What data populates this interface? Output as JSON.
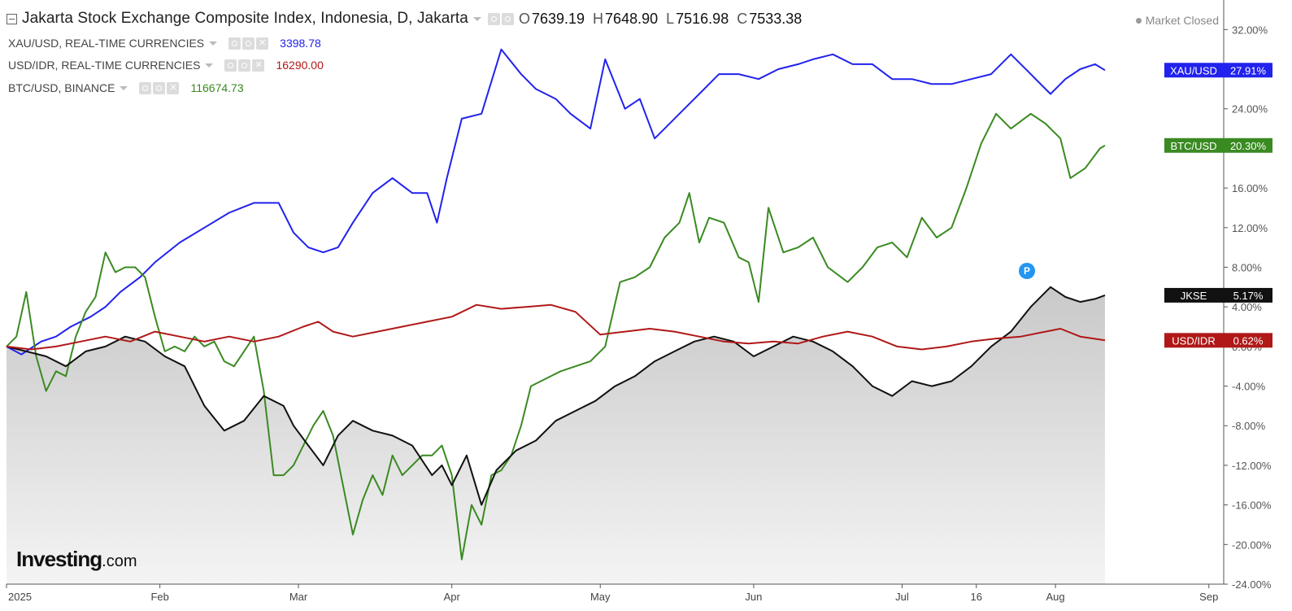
{
  "header": {
    "title": "Jakarta Stock Exchange Composite Index, Indonesia, D, Jakarta",
    "ohlc": [
      {
        "key": "O",
        "value": "7639.19"
      },
      {
        "key": "H",
        "value": "7648.90"
      },
      {
        "key": "L",
        "value": "7516.98"
      },
      {
        "key": "C",
        "value": "7533.38"
      }
    ],
    "market_status": "Market Closed"
  },
  "legend": [
    {
      "label": "XAU/USD, REAL-TIME CURRENCIES",
      "value": "3398.78",
      "color": "#2222ee"
    },
    {
      "label": "USD/IDR, REAL-TIME CURRENCIES",
      "value": "16290.00",
      "color": "#b01818"
    },
    {
      "label": "BTC/USD, BINANCE",
      "value": "116674.73",
      "color": "#3a8a22"
    }
  ],
  "logo": {
    "main": "Investing",
    "suffix": ".com"
  },
  "event_marker": "P",
  "chart_data": {
    "type": "line",
    "y_unit": "%",
    "ylim": [
      -24,
      34
    ],
    "y_ticks": [
      "32.00%",
      "28.00%",
      "24.00%",
      "20.00%",
      "16.00%",
      "12.00%",
      "8.00%",
      "4.00%",
      "0.00%",
      "-4.00%",
      "-8.00%",
      "-12.00%",
      "-16.00%",
      "-20.00%",
      "-24.00%"
    ],
    "y_tick_values": [
      32,
      28,
      24,
      20,
      16,
      12,
      8,
      4,
      0,
      -4,
      -8,
      -12,
      -16,
      -20,
      -24
    ],
    "x_ticks": [
      {
        "label": "2025",
        "day": 0
      },
      {
        "label": "Feb",
        "day": 31
      },
      {
        "label": "Mar",
        "day": 59
      },
      {
        "label": "Apr",
        "day": 90
      },
      {
        "label": "May",
        "day": 120
      },
      {
        "label": "Jun",
        "day": 151
      },
      {
        "label": "Jul",
        "day": 181
      },
      {
        "label": "16",
        "day": 196
      },
      {
        "label": "Aug",
        "day": 212
      },
      {
        "label": "Sep",
        "day": 243
      }
    ],
    "x_range_days": [
      0,
      246
    ],
    "grid": false,
    "series": [
      {
        "name": "XAU/USD",
        "tag": "XAU/USD",
        "last_label": "27.91%",
        "color": "#2222ee",
        "data": [
          [
            0,
            0
          ],
          [
            3,
            -0.8
          ],
          [
            7,
            0.5
          ],
          [
            10,
            1
          ],
          [
            13,
            2
          ],
          [
            17,
            3
          ],
          [
            20,
            4
          ],
          [
            23,
            5.5
          ],
          [
            27,
            7
          ],
          [
            30,
            8.5
          ],
          [
            35,
            10.5
          ],
          [
            40,
            12
          ],
          [
            45,
            13.5
          ],
          [
            50,
            14.5
          ],
          [
            55,
            14.5
          ],
          [
            58,
            11.5
          ],
          [
            61,
            10
          ],
          [
            64,
            9.5
          ],
          [
            67,
            10
          ],
          [
            70,
            12.5
          ],
          [
            74,
            15.5
          ],
          [
            78,
            17
          ],
          [
            82,
            15.5
          ],
          [
            85,
            15.5
          ],
          [
            87,
            12.5
          ],
          [
            89,
            17
          ],
          [
            92,
            23
          ],
          [
            96,
            23.5
          ],
          [
            100,
            30
          ],
          [
            104,
            27.5
          ],
          [
            107,
            26
          ],
          [
            111,
            25
          ],
          [
            114,
            23.5
          ],
          [
            118,
            22
          ],
          [
            121,
            29
          ],
          [
            125,
            24
          ],
          [
            128,
            25
          ],
          [
            131,
            21
          ],
          [
            133,
            22
          ],
          [
            136,
            23.5
          ],
          [
            140,
            25.5
          ],
          [
            144,
            27.5
          ],
          [
            148,
            27.5
          ],
          [
            152,
            27
          ],
          [
            156,
            28
          ],
          [
            160,
            28.5
          ],
          [
            163,
            29
          ],
          [
            167,
            29.5
          ],
          [
            171,
            28.5
          ],
          [
            175,
            28.5
          ],
          [
            179,
            27
          ],
          [
            183,
            27
          ],
          [
            187,
            26.5
          ],
          [
            191,
            26.5
          ],
          [
            195,
            27
          ],
          [
            199,
            27.5
          ],
          [
            203,
            29.5
          ],
          [
            207,
            27.5
          ],
          [
            211,
            25.5
          ],
          [
            214,
            27
          ],
          [
            217,
            28
          ],
          [
            220,
            28.5
          ],
          [
            222,
            27.9
          ]
        ]
      },
      {
        "name": "BTC/USD",
        "tag": "BTC/USD",
        "last_label": "20.30%",
        "color": "#3a8a22",
        "data": [
          [
            0,
            0
          ],
          [
            2,
            1
          ],
          [
            4,
            5.5
          ],
          [
            6,
            -1
          ],
          [
            8,
            -4.5
          ],
          [
            10,
            -2.5
          ],
          [
            12,
            -3
          ],
          [
            14,
            1
          ],
          [
            16,
            3.5
          ],
          [
            18,
            5
          ],
          [
            20,
            9.5
          ],
          [
            22,
            7.5
          ],
          [
            24,
            8
          ],
          [
            26,
            8
          ],
          [
            28,
            7
          ],
          [
            30,
            3
          ],
          [
            32,
            -0.5
          ],
          [
            34,
            0
          ],
          [
            36,
            -0.5
          ],
          [
            38,
            1
          ],
          [
            40,
            0
          ],
          [
            42,
            0.5
          ],
          [
            44,
            -1.5
          ],
          [
            46,
            -2
          ],
          [
            48,
            -0.5
          ],
          [
            50,
            1
          ],
          [
            52,
            -4.5
          ],
          [
            54,
            -13
          ],
          [
            56,
            -13
          ],
          [
            58,
            -12
          ],
          [
            60,
            -10
          ],
          [
            62,
            -8
          ],
          [
            64,
            -6.5
          ],
          [
            66,
            -9
          ],
          [
            68,
            -14
          ],
          [
            70,
            -19
          ],
          [
            72,
            -15.5
          ],
          [
            74,
            -13
          ],
          [
            76,
            -15
          ],
          [
            78,
            -11
          ],
          [
            80,
            -13
          ],
          [
            82,
            -12
          ],
          [
            84,
            -11
          ],
          [
            86,
            -11
          ],
          [
            88,
            -10
          ],
          [
            90,
            -13
          ],
          [
            92,
            -21.5
          ],
          [
            94,
            -16
          ],
          [
            96,
            -18
          ],
          [
            98,
            -13
          ],
          [
            100,
            -12.5
          ],
          [
            102,
            -11
          ],
          [
            104,
            -8
          ],
          [
            106,
            -4
          ],
          [
            108,
            -3.5
          ],
          [
            110,
            -3
          ],
          [
            112,
            -2.5
          ],
          [
            115,
            -2
          ],
          [
            118,
            -1.5
          ],
          [
            121,
            0
          ],
          [
            124,
            6.5
          ],
          [
            127,
            7
          ],
          [
            130,
            8
          ],
          [
            133,
            11
          ],
          [
            136,
            12.5
          ],
          [
            138,
            15.5
          ],
          [
            140,
            10.5
          ],
          [
            142,
            13
          ],
          [
            145,
            12.5
          ],
          [
            148,
            9
          ],
          [
            150,
            8.5
          ],
          [
            152,
            4.5
          ],
          [
            154,
            14
          ],
          [
            157,
            9.5
          ],
          [
            160,
            10
          ],
          [
            163,
            11
          ],
          [
            166,
            8
          ],
          [
            170,
            6.5
          ],
          [
            173,
            8
          ],
          [
            176,
            10
          ],
          [
            179,
            10.5
          ],
          [
            182,
            9
          ],
          [
            185,
            13
          ],
          [
            188,
            11
          ],
          [
            191,
            12
          ],
          [
            194,
            16
          ],
          [
            197,
            20.5
          ],
          [
            200,
            23.5
          ],
          [
            203,
            22
          ],
          [
            207,
            23.5
          ],
          [
            210,
            22.5
          ],
          [
            213,
            21
          ],
          [
            215,
            17
          ],
          [
            218,
            18
          ],
          [
            221,
            20
          ],
          [
            222,
            20.3
          ]
        ]
      },
      {
        "name": "JKSE",
        "tag": "JKSE",
        "last_label": "5.17%",
        "color": "#111111",
        "data": [
          [
            0,
            0
          ],
          [
            4,
            -0.5
          ],
          [
            8,
            -1
          ],
          [
            12,
            -2
          ],
          [
            16,
            -0.5
          ],
          [
            20,
            0
          ],
          [
            24,
            1
          ],
          [
            28,
            0.5
          ],
          [
            32,
            -1
          ],
          [
            36,
            -2
          ],
          [
            40,
            -6
          ],
          [
            44,
            -8.5
          ],
          [
            48,
            -7.5
          ],
          [
            52,
            -5
          ],
          [
            56,
            -6
          ],
          [
            58,
            -8
          ],
          [
            61,
            -10
          ],
          [
            64,
            -12
          ],
          [
            67,
            -9
          ],
          [
            70,
            -7.5
          ],
          [
            74,
            -8.5
          ],
          [
            78,
            -9
          ],
          [
            82,
            -10
          ],
          [
            86,
            -13
          ],
          [
            88,
            -12
          ],
          [
            90,
            -14
          ],
          [
            93,
            -11
          ],
          [
            96,
            -16
          ],
          [
            99,
            -12.5
          ],
          [
            103,
            -10.5
          ],
          [
            107,
            -9.5
          ],
          [
            111,
            -7.5
          ],
          [
            115,
            -6.5
          ],
          [
            119,
            -5.5
          ],
          [
            123,
            -4
          ],
          [
            127,
            -3
          ],
          [
            131,
            -1.5
          ],
          [
            135,
            -0.5
          ],
          [
            139,
            0.5
          ],
          [
            143,
            1
          ],
          [
            147,
            0.5
          ],
          [
            151,
            -1
          ],
          [
            155,
            0
          ],
          [
            159,
            1
          ],
          [
            163,
            0.5
          ],
          [
            167,
            -0.5
          ],
          [
            171,
            -2
          ],
          [
            175,
            -4
          ],
          [
            179,
            -5
          ],
          [
            183,
            -3.5
          ],
          [
            187,
            -4
          ],
          [
            191,
            -3.5
          ],
          [
            195,
            -2
          ],
          [
            199,
            0
          ],
          [
            203,
            1.5
          ],
          [
            207,
            4
          ],
          [
            211,
            6
          ],
          [
            214,
            5
          ],
          [
            217,
            4.5
          ],
          [
            220,
            4.8
          ],
          [
            222,
            5.17
          ]
        ]
      },
      {
        "name": "USD/IDR",
        "tag": "USD/IDR",
        "last_label": "0.62%",
        "color": "#b01818",
        "data": [
          [
            0,
            0
          ],
          [
            5,
            -0.3
          ],
          [
            10,
            0
          ],
          [
            15,
            0.5
          ],
          [
            20,
            1
          ],
          [
            25,
            0.5
          ],
          [
            30,
            1.5
          ],
          [
            35,
            1
          ],
          [
            40,
            0.5
          ],
          [
            45,
            1
          ],
          [
            50,
            0.5
          ],
          [
            55,
            1
          ],
          [
            60,
            2
          ],
          [
            63,
            2.5
          ],
          [
            66,
            1.5
          ],
          [
            70,
            1
          ],
          [
            75,
            1.5
          ],
          [
            80,
            2
          ],
          [
            85,
            2.5
          ],
          [
            90,
            3
          ],
          [
            95,
            4.2
          ],
          [
            100,
            3.8
          ],
          [
            105,
            4
          ],
          [
            110,
            4.2
          ],
          [
            115,
            3.5
          ],
          [
            120,
            1.2
          ],
          [
            125,
            1.5
          ],
          [
            130,
            1.8
          ],
          [
            135,
            1.5
          ],
          [
            140,
            1
          ],
          [
            145,
            0.5
          ],
          [
            150,
            0.3
          ],
          [
            155,
            0.5
          ],
          [
            160,
            0.3
          ],
          [
            165,
            1
          ],
          [
            170,
            1.5
          ],
          [
            175,
            1
          ],
          [
            180,
            0
          ],
          [
            185,
            -0.3
          ],
          [
            190,
            0
          ],
          [
            195,
            0.5
          ],
          [
            200,
            0.8
          ],
          [
            205,
            1
          ],
          [
            210,
            1.5
          ],
          [
            213,
            1.8
          ],
          [
            217,
            1
          ],
          [
            222,
            0.62
          ]
        ]
      }
    ]
  }
}
